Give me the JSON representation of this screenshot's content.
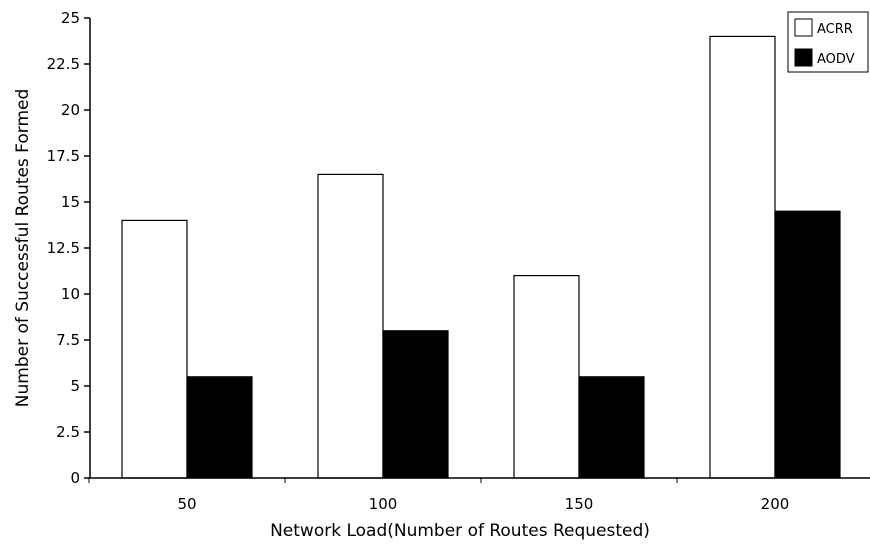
{
  "chart_data": {
    "type": "bar",
    "title": "",
    "xlabel": "Network Load(Number of Routes Requested)",
    "ylabel": "Number of Successful Routes Formed",
    "categories": [
      "50",
      "100",
      "150",
      "200"
    ],
    "series": [
      {
        "name": "ACRR",
        "values": [
          14,
          16.5,
          11,
          24
        ],
        "color": "#ffffff"
      },
      {
        "name": "AODV",
        "values": [
          5.5,
          8,
          5.5,
          14.5
        ],
        "color": "#000000"
      }
    ],
    "ylim": [
      0,
      25
    ],
    "yticks": [
      "0",
      "2.5",
      "5",
      "7.5",
      "10",
      "12.5",
      "15",
      "17.5",
      "20",
      "22.5",
      "25"
    ],
    "grid": false,
    "legend_position": "top-right"
  }
}
